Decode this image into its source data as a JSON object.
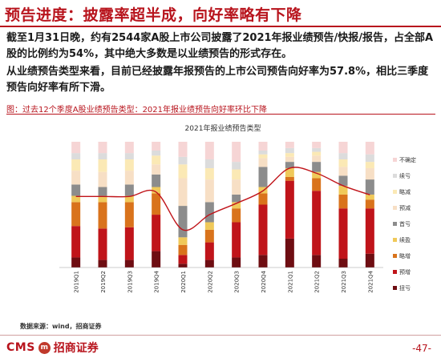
{
  "slide": {
    "title": "预告进度：披露率超半成，向好率略有下降",
    "para1": "截至1月31日晚，约有2544家A股上市公司披露了2021年报业绩预告/快报/报告，占全部A股的比例约为54%，其中绝大多数是以业绩预告的形式存在。",
    "para2": "从业绩预告类型来看，目前已经披露年报预告的上市公司预告向好率为57.8%，相比三季度预告向好率有所下滑。",
    "caption": "图：过去12个季度A股业绩预告类型：2021年报业绩预告向好率环比下降",
    "source": "数据来源：wind，招商证券",
    "page": "-47-"
  },
  "logo": {
    "cms": "CMS",
    "mark": "m",
    "cn": "招商证券"
  },
  "chart_data": {
    "type": "bar",
    "title": "2021年报业绩预告类型",
    "categories": [
      "2019Q1",
      "2019Q2",
      "2019Q3",
      "2019Q4",
      "2020Q1",
      "2020Q2",
      "2020Q3",
      "2020Q4",
      "2021Q1",
      "2021Q2",
      "2021Q3",
      "2021Q4"
    ],
    "ylim": [
      0,
      1
    ],
    "series": [
      {
        "name": "扭亏",
        "color": "#6e0d12",
        "values": [
          0.08,
          0.06,
          0.06,
          0.13,
          0.03,
          0.06,
          0.08,
          0.1,
          0.23,
          0.1,
          0.07,
          0.11
        ]
      },
      {
        "name": "预增",
        "color": "#c0141a",
        "values": [
          0.25,
          0.25,
          0.26,
          0.29,
          0.07,
          0.14,
          0.28,
          0.4,
          0.46,
          0.51,
          0.4,
          0.36
        ]
      },
      {
        "name": "略增",
        "color": "#d9731c",
        "values": [
          0.19,
          0.21,
          0.2,
          0.17,
          0.08,
          0.1,
          0.11,
          0.09,
          0.03,
          0.1,
          0.11,
          0.07
        ]
      },
      {
        "name": "续盈",
        "color": "#f0c95a",
        "values": [
          0.05,
          0.05,
          0.05,
          0.05,
          0.06,
          0.06,
          0.05,
          0.05,
          0.07,
          0.05,
          0.07,
          0.04
        ]
      },
      {
        "name": "首亏",
        "color": "#8c8c8c",
        "values": [
          0.09,
          0.07,
          0.09,
          0.1,
          0.25,
          0.16,
          0.06,
          0.16,
          0.05,
          0.08,
          0.08,
          0.12
        ]
      },
      {
        "name": "预减",
        "color": "#f7dfc5",
        "values": [
          0.11,
          0.12,
          0.11,
          0.08,
          0.22,
          0.18,
          0.12,
          0.07,
          0.04,
          0.05,
          0.07,
          0.09
        ]
      },
      {
        "name": "略减",
        "color": "#fbe9b5",
        "values": [
          0.09,
          0.1,
          0.09,
          0.07,
          0.11,
          0.09,
          0.08,
          0.03,
          0.03,
          0.03,
          0.06,
          0.05
        ]
      },
      {
        "name": "续亏",
        "color": "#dcdcdc",
        "values": [
          0.05,
          0.05,
          0.05,
          0.04,
          0.06,
          0.07,
          0.06,
          0.03,
          0.04,
          0.03,
          0.05,
          0.06
        ]
      },
      {
        "name": "不确定",
        "color": "#f6d5d5",
        "values": [
          0.09,
          0.09,
          0.09,
          0.07,
          0.12,
          0.14,
          0.16,
          0.07,
          0.05,
          0.05,
          0.09,
          0.1
        ]
      }
    ],
    "line": {
      "name": "向好率",
      "color": "#c0141a",
      "values": [
        0.565,
        0.565,
        0.565,
        0.6,
        0.3,
        0.42,
        0.51,
        0.61,
        0.79,
        0.75,
        0.65,
        0.578
      ]
    },
    "legend_order": [
      "不确定",
      "续亏",
      "略减",
      "预减",
      "首亏",
      "续盈",
      "略增",
      "预增",
      "扭亏"
    ],
    "legend": "right",
    "grid": false
  }
}
